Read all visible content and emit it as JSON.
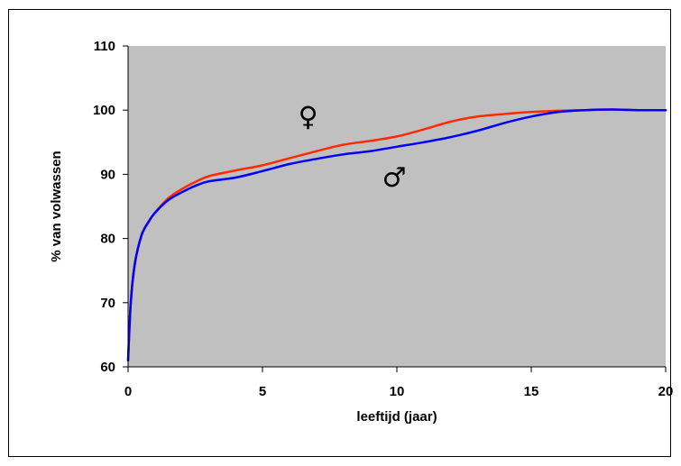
{
  "chart_data": {
    "type": "line",
    "xlabel": "leeftijd (jaar)",
    "ylabel": "% van volwassen",
    "xlim": [
      0,
      20
    ],
    "ylim": [
      60,
      110
    ],
    "xticks": [
      "0",
      "5",
      "10",
      "15",
      "20"
    ],
    "yticks": [
      "60",
      "70",
      "80",
      "90",
      "100",
      "110"
    ],
    "grid": false,
    "plot_background": "#C0C0C0",
    "series": [
      {
        "name": "♀",
        "color": "#FF2A00",
        "x": [
          0,
          0.1,
          0.25,
          0.5,
          0.75,
          1,
          1.5,
          2,
          2.5,
          3,
          4,
          5,
          6,
          7,
          8,
          9,
          10,
          11,
          12,
          13,
          14,
          15,
          16,
          17,
          18,
          19,
          20
        ],
        "y": [
          61,
          70,
          76,
          80.5,
          82.5,
          84,
          86.3,
          87.7,
          88.8,
          89.7,
          90.6,
          91.4,
          92.5,
          93.6,
          94.6,
          95.2,
          95.9,
          97,
          98.2,
          99,
          99.4,
          99.7,
          99.9,
          100,
          100.1,
          100,
          100
        ]
      },
      {
        "name": "♂",
        "color": "#0000FF",
        "x": [
          0,
          0.1,
          0.25,
          0.5,
          0.75,
          1,
          1.5,
          2,
          2.5,
          3,
          4,
          5,
          6,
          7,
          8,
          9,
          10,
          11,
          12,
          13,
          14,
          15,
          16,
          17,
          18,
          19,
          20
        ],
        "y": [
          61,
          70,
          76,
          80.5,
          82.5,
          84,
          86,
          87.2,
          88.2,
          88.9,
          89.5,
          90.5,
          91.6,
          92.4,
          93.1,
          93.6,
          94.3,
          95,
          95.8,
          96.8,
          98,
          99,
          99.7,
          100,
          100.1,
          100,
          100
        ]
      }
    ],
    "annotations": [
      {
        "text": "♀",
        "x": 6.7,
        "y": 99
      },
      {
        "text": "♂",
        "x": 9.9,
        "y": 89.5
      }
    ]
  }
}
